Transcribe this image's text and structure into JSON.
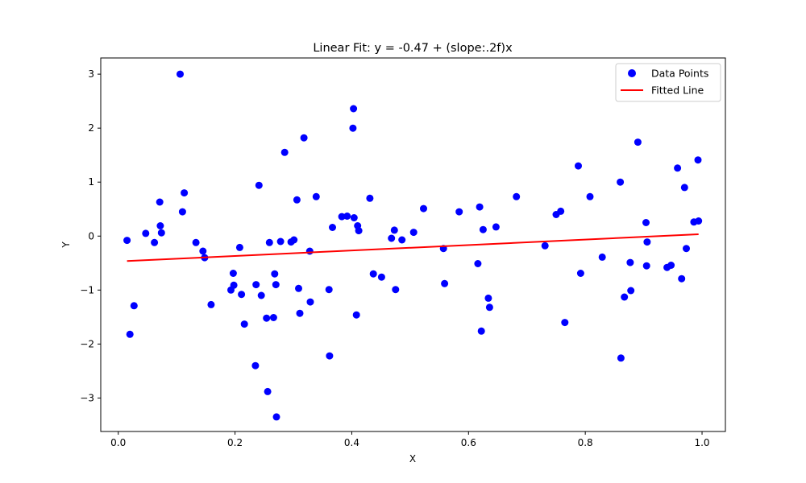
{
  "chart_data": {
    "type": "scatter",
    "title": "Linear Fit: y = -0.47 + (slope:.2f)x",
    "xlabel": "X",
    "ylabel": "Y",
    "xlim": [
      -0.03,
      1.04
    ],
    "ylim": [
      -3.62,
      3.3
    ],
    "x_ticks": [
      0.0,
      0.2,
      0.4,
      0.6,
      0.8,
      1.0
    ],
    "x_tick_labels": [
      "0.0",
      "0.2",
      "0.4",
      "0.6",
      "0.8",
      "1.0"
    ],
    "y_ticks": [
      -3,
      -2,
      -1,
      0,
      1,
      2,
      3
    ],
    "y_tick_labels": [
      "−3",
      "−2",
      "−1",
      "0",
      "1",
      "2",
      "3"
    ],
    "grid": false,
    "legend_position": "top-right",
    "colors": {
      "points": "#0000ff",
      "line": "#ff0000"
    },
    "series": [
      {
        "name": "Data Points",
        "kind": "scatter",
        "points": [
          [
            0.015,
            -0.08
          ],
          [
            0.02,
            -1.82
          ],
          [
            0.027,
            -1.29
          ],
          [
            0.047,
            0.05
          ],
          [
            0.062,
            -0.12
          ],
          [
            0.071,
            0.63
          ],
          [
            0.072,
            0.19
          ],
          [
            0.074,
            0.06
          ],
          [
            0.106,
            3.0
          ],
          [
            0.11,
            0.45
          ],
          [
            0.113,
            0.8
          ],
          [
            0.133,
            -0.12
          ],
          [
            0.145,
            -0.28
          ],
          [
            0.148,
            -0.4
          ],
          [
            0.159,
            -1.27
          ],
          [
            0.193,
            -1.0
          ],
          [
            0.197,
            -0.69
          ],
          [
            0.198,
            -0.91
          ],
          [
            0.208,
            -0.21
          ],
          [
            0.211,
            -1.08
          ],
          [
            0.216,
            -1.63
          ],
          [
            0.235,
            -2.4
          ],
          [
            0.236,
            -0.9
          ],
          [
            0.241,
            0.94
          ],
          [
            0.245,
            -1.1
          ],
          [
            0.254,
            -1.52
          ],
          [
            0.256,
            -2.88
          ],
          [
            0.259,
            -0.12
          ],
          [
            0.266,
            -1.51
          ],
          [
            0.268,
            -0.7
          ],
          [
            0.27,
            -0.9
          ],
          [
            0.271,
            -3.35
          ],
          [
            0.278,
            -0.1
          ],
          [
            0.285,
            1.55
          ],
          [
            0.296,
            -0.11
          ],
          [
            0.301,
            -0.07
          ],
          [
            0.306,
            0.67
          ],
          [
            0.309,
            -0.97
          ],
          [
            0.311,
            -1.43
          ],
          [
            0.318,
            1.82
          ],
          [
            0.328,
            -0.28
          ],
          [
            0.329,
            -1.22
          ],
          [
            0.339,
            0.73
          ],
          [
            0.361,
            -0.99
          ],
          [
            0.362,
            -2.22
          ],
          [
            0.367,
            0.16
          ],
          [
            0.383,
            0.36
          ],
          [
            0.392,
            0.37
          ],
          [
            0.402,
            2.0
          ],
          [
            0.403,
            2.36
          ],
          [
            0.404,
            0.34
          ],
          [
            0.408,
            -1.46
          ],
          [
            0.41,
            0.19
          ],
          [
            0.412,
            0.1
          ],
          [
            0.431,
            0.7
          ],
          [
            0.437,
            -0.7
          ],
          [
            0.451,
            -0.76
          ],
          [
            0.468,
            -0.04
          ],
          [
            0.473,
            0.11
          ],
          [
            0.475,
            -0.99
          ],
          [
            0.486,
            -0.07
          ],
          [
            0.506,
            0.07
          ],
          [
            0.523,
            0.51
          ],
          [
            0.557,
            -0.23
          ],
          [
            0.559,
            -0.88
          ],
          [
            0.584,
            0.45
          ],
          [
            0.616,
            -0.51
          ],
          [
            0.619,
            0.54
          ],
          [
            0.622,
            -1.76
          ],
          [
            0.625,
            0.12
          ],
          [
            0.634,
            -1.15
          ],
          [
            0.636,
            -1.32
          ],
          [
            0.647,
            0.17
          ],
          [
            0.682,
            0.73
          ],
          [
            0.731,
            -0.18
          ],
          [
            0.75,
            0.4
          ],
          [
            0.758,
            0.46
          ],
          [
            0.765,
            -1.6
          ],
          [
            0.788,
            1.3
          ],
          [
            0.792,
            -0.69
          ],
          [
            0.808,
            0.73
          ],
          [
            0.829,
            -0.39
          ],
          [
            0.86,
            1.0
          ],
          [
            0.861,
            -2.26
          ],
          [
            0.867,
            -1.13
          ],
          [
            0.877,
            -0.49
          ],
          [
            0.878,
            -1.01
          ],
          [
            0.89,
            1.74
          ],
          [
            0.904,
            0.25
          ],
          [
            0.905,
            -0.55
          ],
          [
            0.906,
            -0.11
          ],
          [
            0.94,
            -0.58
          ],
          [
            0.947,
            -0.54
          ],
          [
            0.958,
            1.26
          ],
          [
            0.965,
            -0.79
          ],
          [
            0.97,
            0.9
          ],
          [
            0.973,
            -0.23
          ],
          [
            0.986,
            0.26
          ],
          [
            0.993,
            1.41
          ],
          [
            0.994,
            0.28
          ]
        ]
      },
      {
        "name": "Fitted Line",
        "kind": "line",
        "points": [
          [
            0.015,
            -0.463
          ],
          [
            0.994,
            0.034
          ]
        ]
      }
    ]
  }
}
